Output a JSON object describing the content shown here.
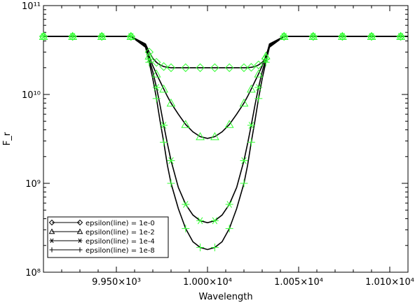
{
  "chart_data": {
    "type": "line",
    "xlabel": "Wavelength",
    "ylabel": "F_r",
    "xscale": "linear",
    "yscale": "log",
    "xlim": [
      9910,
      10110
    ],
    "ylim": [
      100000000.0,
      100000000000.0
    ],
    "x_ticks": [
      {
        "value": 9950,
        "label": "9.950×10³"
      },
      {
        "value": 10000,
        "label": "1.000×10⁴"
      },
      {
        "value": 10050,
        "label": "1.005×10⁴"
      },
      {
        "value": 10100,
        "label": "1.010×10⁴"
      }
    ],
    "y_ticks": [
      {
        "value": 100000000.0,
        "label": "10⁸"
      },
      {
        "value": 1000000000.0,
        "label": "10⁹"
      },
      {
        "value": 10000000000.0,
        "label": "10¹⁰"
      },
      {
        "value": 100000000000.0,
        "label": "10¹¹"
      }
    ],
    "line_color": "#000000",
    "marker_color": "#33ff33",
    "legend_position": "bottom-left",
    "x": [
      9910,
      9918,
      9926,
      9934,
      9942,
      9950,
      9958,
      9966,
      9968,
      9970,
      9972,
      9974,
      9976,
      9978,
      9980,
      9984,
      9988,
      9992,
      9996,
      10000,
      10004,
      10008,
      10012,
      10016,
      10020,
      10022,
      10024,
      10026,
      10028,
      10030,
      10032,
      10034,
      10042,
      10050,
      10058,
      10066,
      10074,
      10082,
      10090,
      10098,
      10106,
      10110
    ],
    "series": [
      {
        "name": "epsilon(line) = 1e-0",
        "marker": "diamond",
        "values": [
          45000000000.0,
          45000000000.0,
          45000000000.0,
          45000000000.0,
          45000000000.0,
          45000000000.0,
          45000000000.0,
          37000000000.0,
          30000000000.0,
          25500000000.0,
          23000000000.0,
          21500000000.0,
          20600000000.0,
          20200000000.0,
          20000000000.0,
          20000000000.0,
          20000000000.0,
          20000000000.0,
          20000000000.0,
          20000000000.0,
          20000000000.0,
          20000000000.0,
          20000000000.0,
          20000000000.0,
          20000000000.0,
          20000000000.0,
          20200000000.0,
          20600000000.0,
          21500000000.0,
          23000000000.0,
          25500000000.0,
          37000000000.0,
          45000000000.0,
          45000000000.0,
          45000000000.0,
          45000000000.0,
          45000000000.0,
          45000000000.0,
          45000000000.0,
          45000000000.0,
          45000000000.0,
          45000000000.0
        ]
      },
      {
        "name": "epsilon(line) = 1e-2",
        "marker": "triangle",
        "values": [
          45000000000.0,
          45000000000.0,
          45000000000.0,
          45000000000.0,
          45000000000.0,
          45000000000.0,
          45000000000.0,
          36000000000.0,
          27000000000.0,
          21000000000.0,
          17000000000.0,
          14000000000.0,
          11500000000.0,
          9500000000.0,
          8000000000.0,
          6000000000.0,
          4600000000.0,
          3800000000.0,
          3350000000.0,
          3200000000.0,
          3350000000.0,
          3800000000.0,
          4600000000.0,
          6000000000.0,
          8000000000.0,
          9500000000.0,
          11500000000.0,
          14000000000.0,
          17000000000.0,
          21000000000.0,
          27000000000.0,
          36000000000.0,
          45000000000.0,
          45000000000.0,
          45000000000.0,
          45000000000.0,
          45000000000.0,
          45000000000.0,
          45000000000.0,
          45000000000.0,
          45000000000.0,
          45000000000.0
        ]
      },
      {
        "name": "epsilon(line) = 1e-4",
        "marker": "asterisk",
        "values": [
          45000000000.0,
          45000000000.0,
          45000000000.0,
          45000000000.0,
          45000000000.0,
          45000000000.0,
          45000000000.0,
          35000000000.0,
          25000000000.0,
          18000000000.0,
          12000000000.0,
          7500000000.0,
          4500000000.0,
          2800000000.0,
          1800000000.0,
          900000000.0,
          580000000.0,
          440000000.0,
          380000000.0,
          360000000.0,
          380000000.0,
          440000000.0,
          580000000.0,
          900000000.0,
          1800000000.0,
          2800000000.0,
          4500000000.0,
          7500000000.0,
          12000000000.0,
          18000000000.0,
          25000000000.0,
          35000000000.0,
          45000000000.0,
          45000000000.0,
          45000000000.0,
          45000000000.0,
          45000000000.0,
          45000000000.0,
          45000000000.0,
          45000000000.0,
          45000000000.0,
          45000000000.0
        ]
      },
      {
        "name": "epsilon(line) = 1e-8",
        "marker": "plus",
        "values": [
          45000000000.0,
          45000000000.0,
          45000000000.0,
          45000000000.0,
          45000000000.0,
          45000000000.0,
          45000000000.0,
          34000000000.0,
          23000000000.0,
          15000000000.0,
          9000000000.0,
          5000000000.0,
          2900000000.0,
          1600000000.0,
          1000000000.0,
          520000000.0,
          310000000.0,
          220000000.0,
          190000000.0,
          180000000.0,
          190000000.0,
          220000000.0,
          310000000.0,
          520000000.0,
          1000000000.0,
          1600000000.0,
          2900000000.0,
          5000000000.0,
          9000000000.0,
          15000000000.0,
          23000000000.0,
          34000000000.0,
          45000000000.0,
          45000000000.0,
          45000000000.0,
          45000000000.0,
          45000000000.0,
          45000000000.0,
          45000000000.0,
          45000000000.0,
          45000000000.0,
          45000000000.0
        ]
      }
    ]
  }
}
